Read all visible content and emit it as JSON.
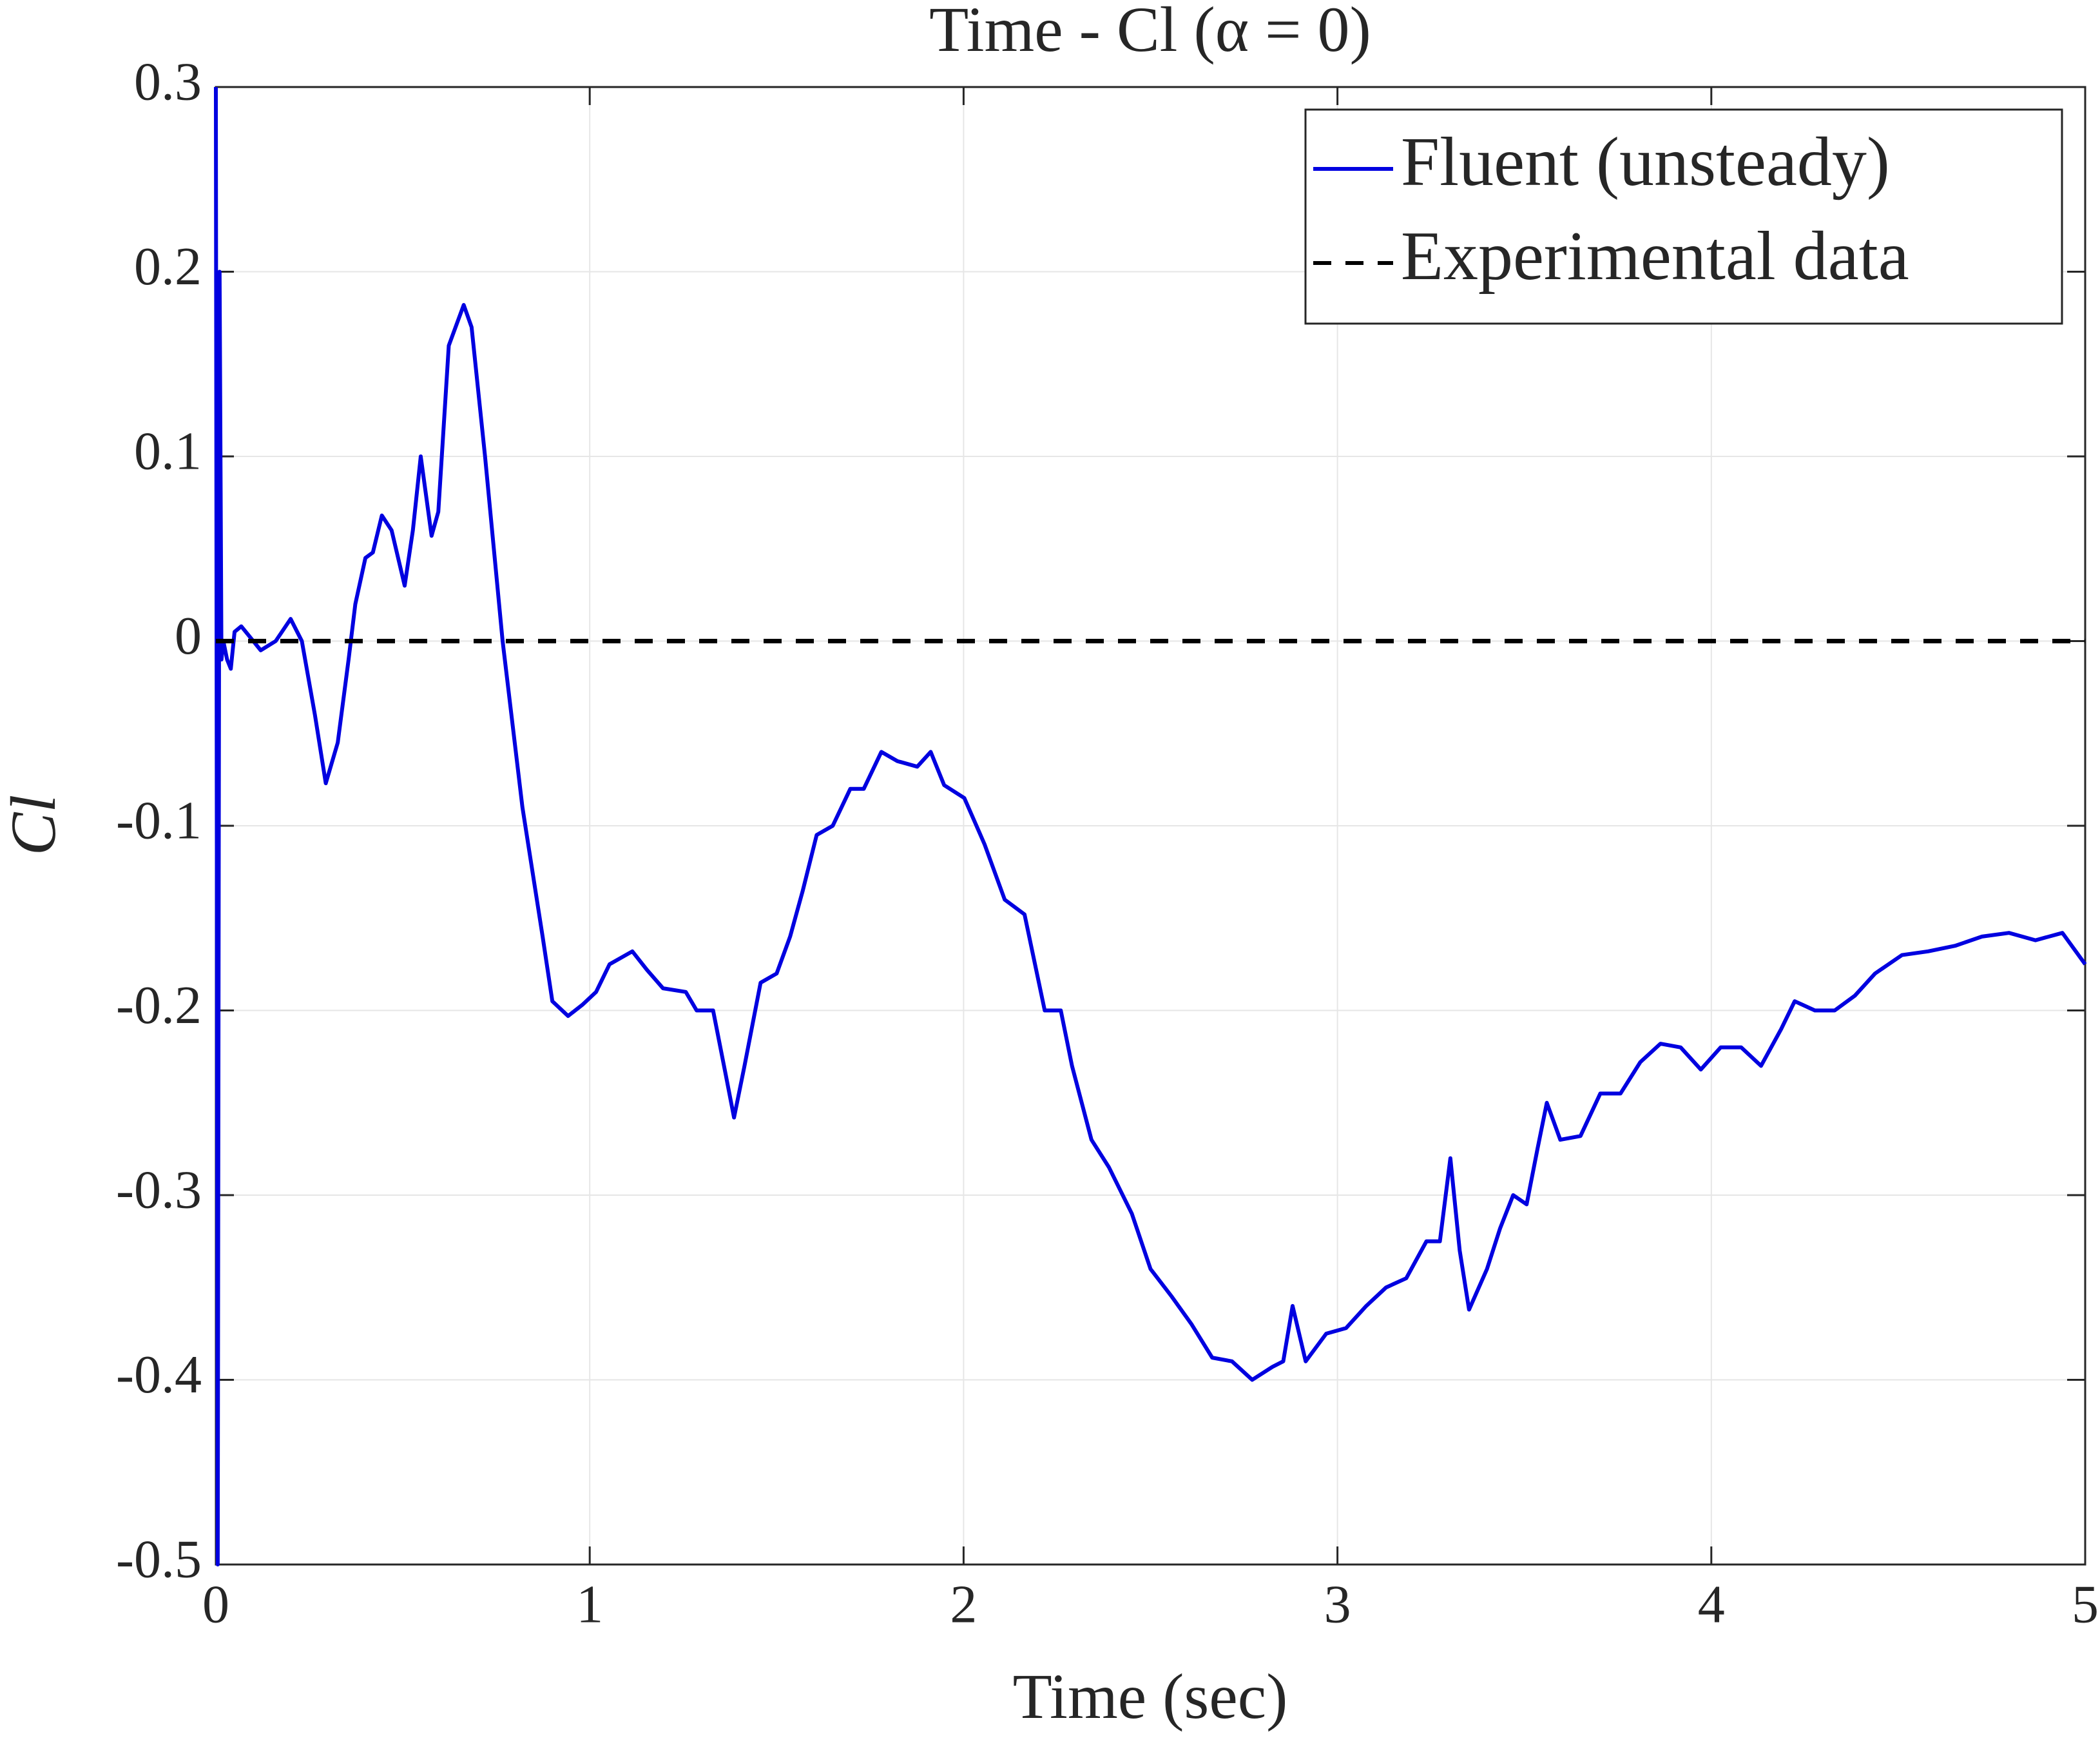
{
  "chart_data": {
    "type": "line",
    "title": "Time - Cl (α = 0)",
    "x_label": "Time (sec)",
    "y_label": "Cl",
    "xlim": [
      0,
      5
    ],
    "ylim": [
      -0.5,
      0.3
    ],
    "xticks": [
      0,
      1,
      2,
      3,
      4,
      5
    ],
    "yticks": [
      -0.5,
      -0.4,
      -0.3,
      -0.2,
      -0.1,
      0,
      0.1,
      0.2,
      0.3
    ],
    "grid": true,
    "legend_location": "northeast",
    "series": [
      {
        "name": "Fluent (unsteady)",
        "color": "#0000e0",
        "style": "solid",
        "x": [
          0,
          0.005,
          0.01,
          0.015,
          0.02,
          0.03,
          0.04,
          0.05,
          0.068,
          0.12,
          0.16,
          0.2,
          0.23,
          0.265,
          0.294,
          0.326,
          0.355,
          0.373,
          0.4,
          0.42,
          0.444,
          0.47,
          0.505,
          0.527,
          0.548,
          0.577,
          0.595,
          0.623,
          0.663,
          0.684,
          0.72,
          0.767,
          0.82,
          0.874,
          0.9,
          0.942,
          0.98,
          1.017,
          1.053,
          1.114,
          1.153,
          1.196,
          1.257,
          1.286,
          1.33,
          1.364,
          1.386,
          1.414,
          1.457,
          1.5,
          1.536,
          1.57,
          1.607,
          1.65,
          1.697,
          1.733,
          1.78,
          1.823,
          1.876,
          1.912,
          1.948,
          2.002,
          2.056,
          2.11,
          2.163,
          2.217,
          2.26,
          2.29,
          2.342,
          2.389,
          2.45,
          2.5,
          2.557,
          2.61,
          2.665,
          2.718,
          2.772,
          2.826,
          2.855,
          2.88,
          2.915,
          2.97,
          3.023,
          3.077,
          3.13,
          3.184,
          3.238,
          3.274,
          3.302,
          3.327,
          3.352,
          3.4,
          3.435,
          3.47,
          3.506,
          3.535,
          3.56,
          3.596,
          3.65,
          3.703,
          3.757,
          3.81,
          3.864,
          3.918,
          3.972,
          4.025,
          4.08,
          4.133,
          4.187,
          4.223,
          4.277,
          4.33,
          4.384,
          4.438,
          4.51,
          4.58,
          4.652,
          4.724,
          4.796,
          4.867,
          4.939,
          5
        ],
        "values": [
          0.3,
          -0.5,
          0.2,
          -0.01,
          0,
          -0.01,
          -0.015,
          0.005,
          0.008,
          -0.005,
          0,
          0.012,
          0,
          -0.04,
          -0.077,
          -0.055,
          -0.01,
          0.02,
          0.045,
          0.048,
          0.068,
          0.06,
          0.03,
          0.06,
          0.1,
          0.057,
          0.07,
          0.16,
          0.182,
          0.17,
          0.1,
          0,
          -0.09,
          -0.16,
          -0.195,
          -0.203,
          -0.197,
          -0.19,
          -0.175,
          -0.168,
          -0.178,
          -0.188,
          -0.19,
          -0.2,
          -0.2,
          -0.235,
          -0.258,
          -0.23,
          -0.185,
          -0.18,
          -0.16,
          -0.135,
          -0.105,
          -0.1,
          -0.08,
          -0.08,
          -0.06,
          -0.065,
          -0.068,
          -0.06,
          -0.078,
          -0.085,
          -0.11,
          -0.14,
          -0.148,
          -0.2,
          -0.2,
          -0.23,
          -0.27,
          -0.285,
          -0.31,
          -0.34,
          -0.355,
          -0.37,
          -0.388,
          -0.39,
          -0.4,
          -0.393,
          -0.39,
          -0.36,
          -0.39,
          -0.375,
          -0.372,
          -0.36,
          -0.35,
          -0.345,
          -0.325,
          -0.325,
          -0.28,
          -0.33,
          -0.362,
          -0.34,
          -0.318,
          -0.3,
          -0.305,
          -0.275,
          -0.25,
          -0.27,
          -0.268,
          -0.245,
          -0.245,
          -0.228,
          -0.218,
          -0.22,
          -0.232,
          -0.22,
          -0.22,
          -0.23,
          -0.21,
          -0.195,
          -0.2,
          -0.2,
          -0.192,
          -0.18,
          -0.17,
          -0.168,
          -0.165,
          -0.16,
          -0.158,
          -0.162,
          -0.158,
          -0.175
        ]
      },
      {
        "name": "Experimental data",
        "color": "#000000",
        "style": "dashed",
        "x": [
          0,
          5
        ],
        "values": [
          0,
          0
        ]
      }
    ]
  }
}
